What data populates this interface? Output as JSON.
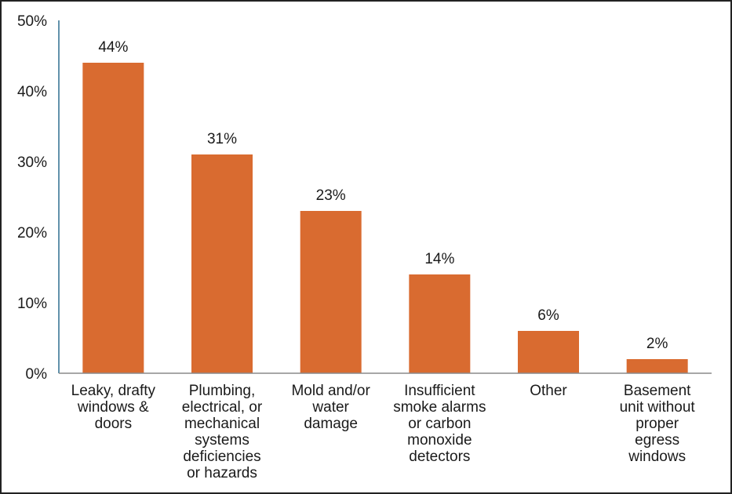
{
  "chart_data": {
    "type": "bar",
    "categories": [
      [
        "Leaky, drafty",
        "windows &",
        "doors"
      ],
      [
        "Plumbing,",
        "electrical, or",
        "mechanical",
        "systems",
        "deficiencies",
        "or hazards"
      ],
      [
        "Mold and/or",
        "water",
        "damage"
      ],
      [
        "Insufficient",
        "smoke alarms",
        "or carbon",
        "monoxide",
        "detectors"
      ],
      [
        "Other"
      ],
      [
        "Basement",
        "unit without",
        "proper",
        "egress",
        "windows"
      ]
    ],
    "values": [
      44,
      31,
      23,
      14,
      6,
      2
    ],
    "data_labels": [
      "44%",
      "31%",
      "23%",
      "14%",
      "6%",
      "2%"
    ],
    "ylim": [
      0,
      50
    ],
    "yticks": [
      0,
      10,
      20,
      30,
      40,
      50
    ],
    "ytick_labels": [
      "0%",
      "10%",
      "20%",
      "30%",
      "40%",
      "50%"
    ],
    "grid": false,
    "bar_color": "#d96b30",
    "y_axis_color": "#2f6f8f",
    "x_axis_color": "#8a8a8a"
  }
}
